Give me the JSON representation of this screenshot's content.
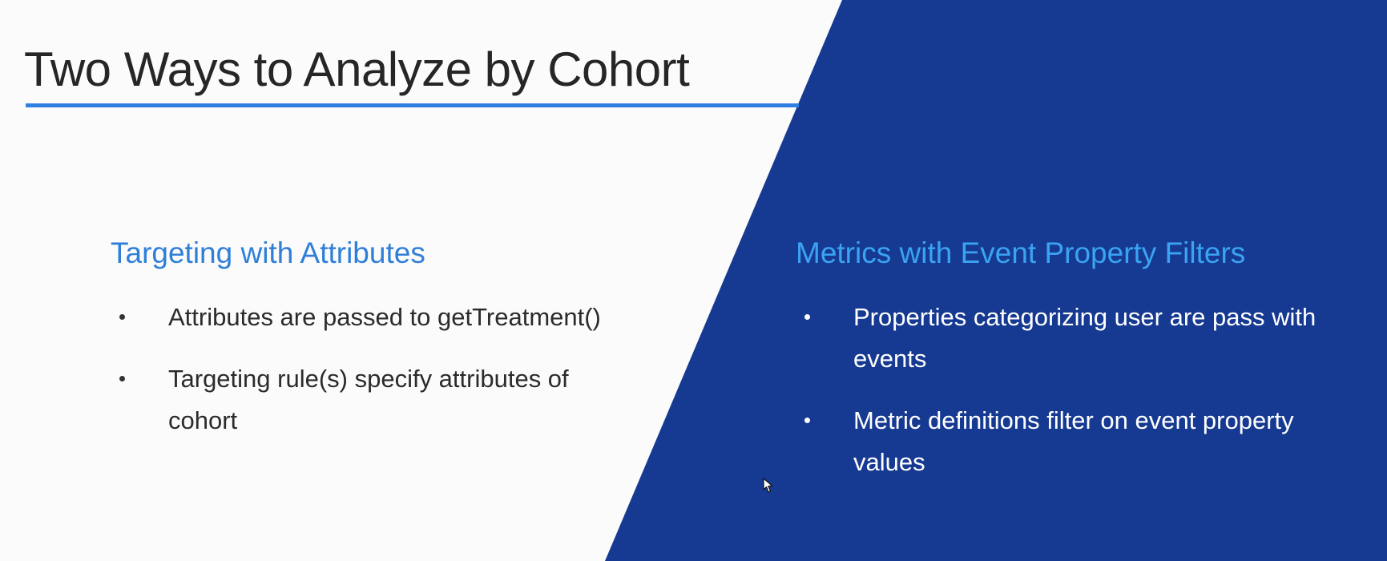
{
  "slide": {
    "title": "Two Ways to Analyze by Cohort",
    "colors": {
      "background": "#fbfbfb",
      "panel": "#163a91",
      "accent_rule": "#2f7fe0",
      "left_heading": "#2f7fd8",
      "right_heading": "#3aa3f2"
    },
    "left": {
      "heading": "Targeting with Attributes",
      "bullets": [
        "Attributes are passed to getTreatment()",
        "Targeting rule(s) specify attributes of cohort"
      ]
    },
    "right": {
      "heading": "Metrics with Event Property Filters",
      "bullets": [
        "Properties categorizing user are pass with events",
        "Metric definitions filter on event property values"
      ]
    },
    "cursor_icon": "mouse-pointer-icon"
  }
}
